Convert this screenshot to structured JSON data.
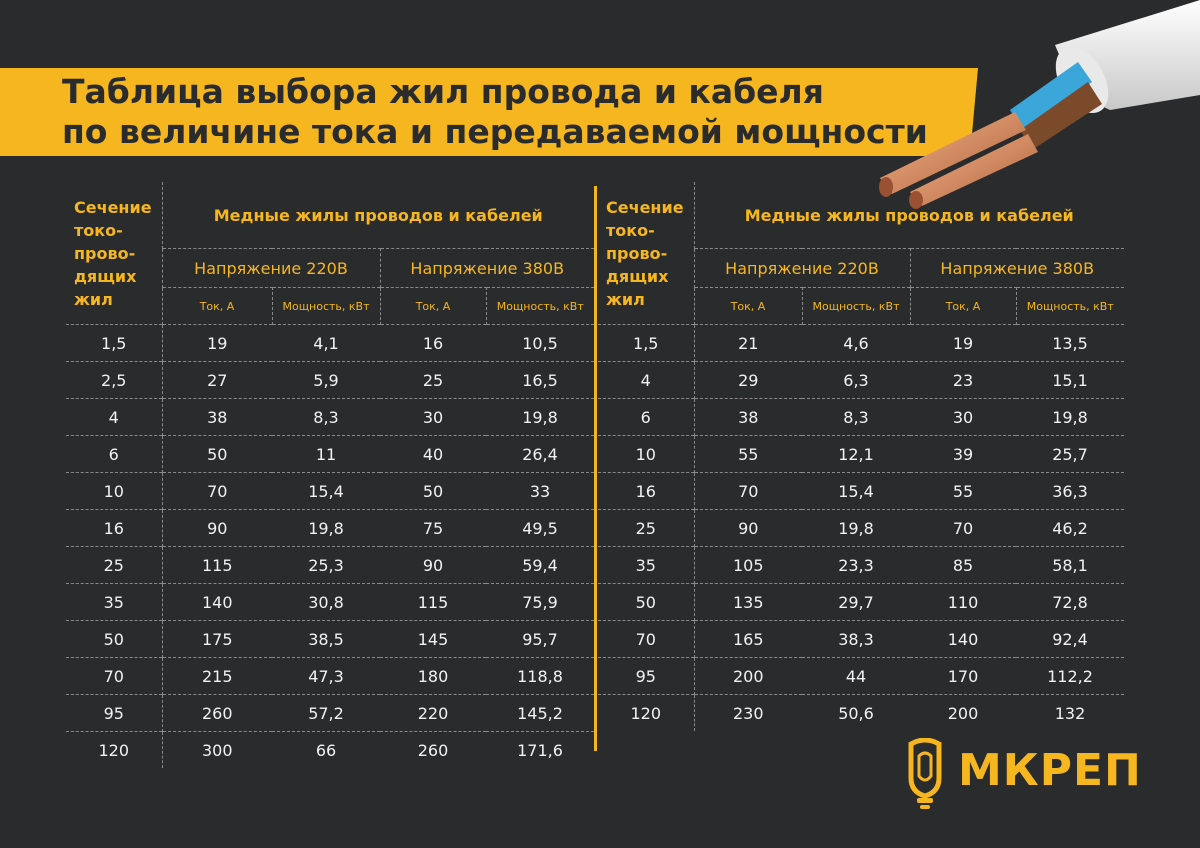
{
  "title": {
    "line1": "Таблица выбора жил провода и кабеля",
    "line2": "по величине тока и передаваемой мощности"
  },
  "header": {
    "section": "Сечение токо-проводящих жил",
    "section_lines": [
      "Сечение",
      "токо-",
      "прово-",
      "дящих",
      "жил"
    ],
    "copper": "Медные жилы проводов и кабелей",
    "v220": "Напряжение 220В",
    "v380": "Напряжение 380В",
    "current": "Ток, А",
    "power": "Мощность, кВт"
  },
  "table_left": {
    "rows": [
      [
        "1,5",
        "19",
        "4,1",
        "16",
        "10,5"
      ],
      [
        "2,5",
        "27",
        "5,9",
        "25",
        "16,5"
      ],
      [
        "4",
        "38",
        "8,3",
        "30",
        "19,8"
      ],
      [
        "6",
        "50",
        "11",
        "40",
        "26,4"
      ],
      [
        "10",
        "70",
        "15,4",
        "50",
        "33"
      ],
      [
        "16",
        "90",
        "19,8",
        "75",
        "49,5"
      ],
      [
        "25",
        "115",
        "25,3",
        "90",
        "59,4"
      ],
      [
        "35",
        "140",
        "30,8",
        "115",
        "75,9"
      ],
      [
        "50",
        "175",
        "38,5",
        "145",
        "95,7"
      ],
      [
        "70",
        "215",
        "47,3",
        "180",
        "118,8"
      ],
      [
        "95",
        "260",
        "57,2",
        "220",
        "145,2"
      ],
      [
        "120",
        "300",
        "66",
        "260",
        "171,6"
      ]
    ]
  },
  "table_right": {
    "rows": [
      [
        "1,5",
        "21",
        "4,6",
        "19",
        "13,5"
      ],
      [
        "4",
        "29",
        "6,3",
        "23",
        "15,1"
      ],
      [
        "6",
        "38",
        "8,3",
        "30",
        "19,8"
      ],
      [
        "10",
        "55",
        "12,1",
        "39",
        "25,7"
      ],
      [
        "16",
        "70",
        "15,4",
        "55",
        "36,3"
      ],
      [
        "25",
        "90",
        "19,8",
        "70",
        "46,2"
      ],
      [
        "35",
        "105",
        "23,3",
        "85",
        "58,1"
      ],
      [
        "50",
        "135",
        "29,7",
        "110",
        "72,8"
      ],
      [
        "70",
        "165",
        "38,3",
        "140",
        "92,4"
      ],
      [
        "95",
        "200",
        "44",
        "170",
        "112,2"
      ],
      [
        "120",
        "230",
        "50,6",
        "200",
        "132"
      ]
    ]
  },
  "logo": {
    "text": "МКРЕП"
  },
  "colors": {
    "accent": "#f6b620",
    "background": "#2a2b2d",
    "text": "#f2f2f2"
  }
}
